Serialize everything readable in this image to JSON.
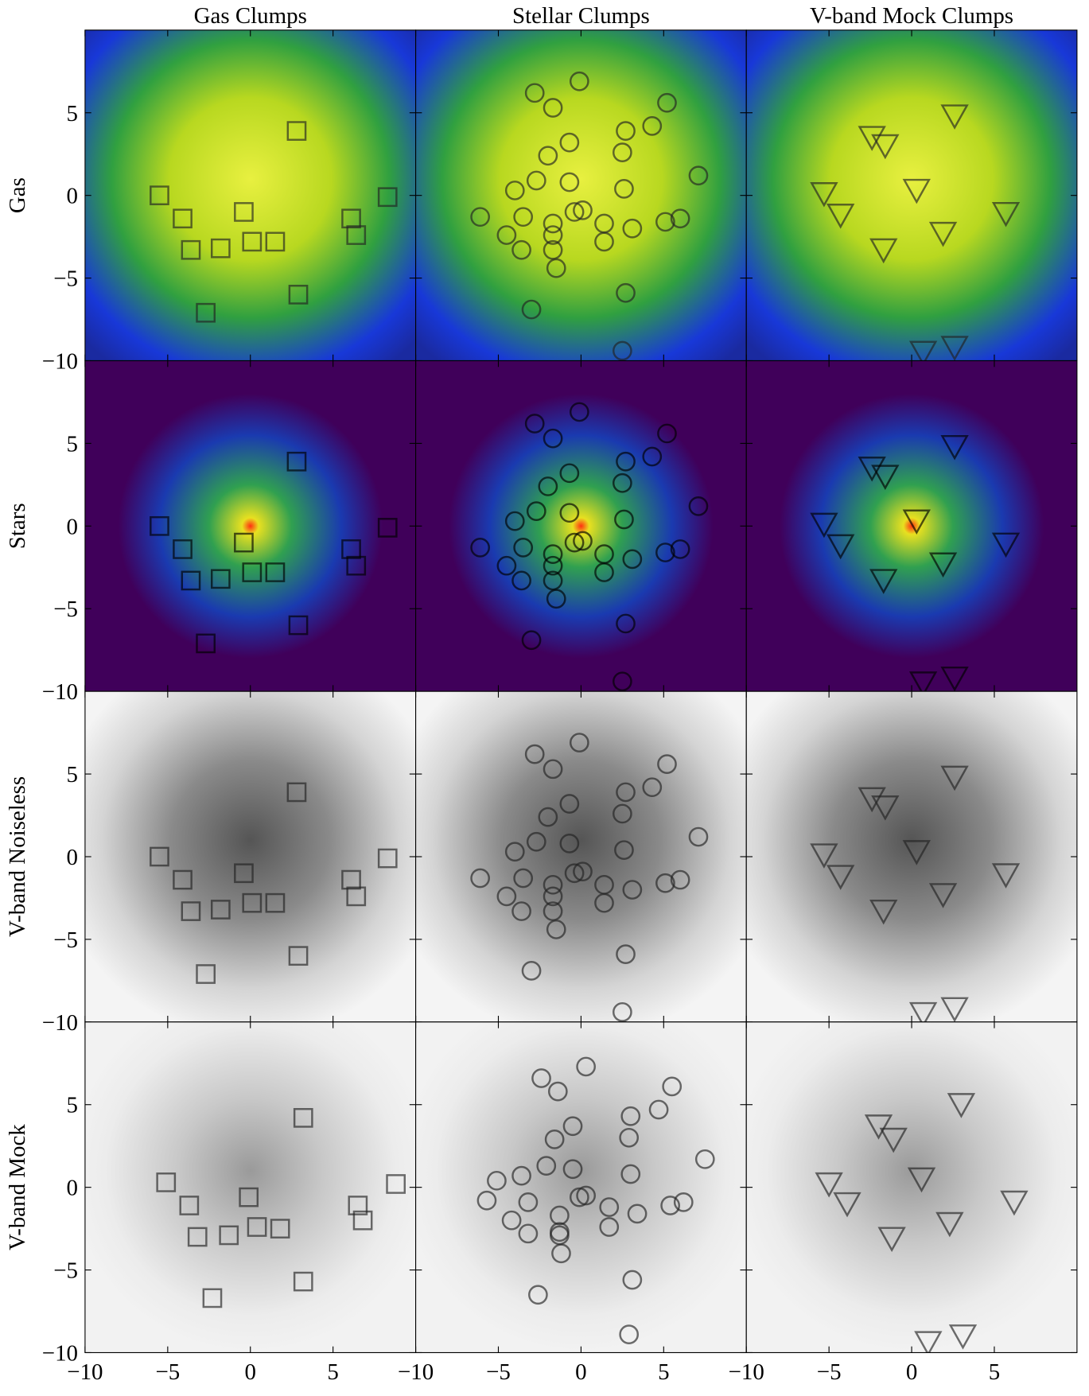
{
  "chart_data": {
    "type": "scatter",
    "row_labels": [
      "Gas",
      "Stars",
      "V-band Noiseless",
      "V-band Mock"
    ],
    "xlim": [
      -10,
      10
    ],
    "ylim": [
      -10,
      10
    ],
    "xticks": [
      {
        "value": -10,
        "label": "−10"
      },
      {
        "value": -5,
        "label": "−5"
      },
      0,
      5
    ],
    "yticks": [
      {
        "value": -10,
        "label": "−10"
      },
      {
        "value": -5,
        "label": "−5"
      },
      0,
      5
    ],
    "markers": [
      "square",
      "circle",
      "triangle"
    ],
    "series": [
      {
        "name": "Gas Clumps",
        "x": [
          2.8,
          -5.5,
          8.3,
          -4.1,
          -0.4,
          6.1,
          6.4,
          0.1,
          1.5,
          -1.8,
          -3.6,
          2.9,
          -2.7
        ],
        "y": [
          3.9,
          0.0,
          -0.1,
          -1.4,
          -1.0,
          -1.4,
          -2.4,
          -2.8,
          -2.8,
          -3.2,
          -3.3,
          -6.0,
          -7.1
        ]
      },
      {
        "name": "Stellar Clumps",
        "x": [
          -2.8,
          -0.1,
          -1.7,
          5.2,
          4.3,
          2.7,
          -0.7,
          -2.0,
          2.5,
          -2.7,
          -0.7,
          7.1,
          -4.0,
          2.6,
          -6.1,
          -3.5,
          -0.4,
          0.1,
          -1.7,
          1.4,
          5.1,
          6.0,
          -4.5,
          3.1,
          -1.7,
          1.4,
          -3.6,
          -1.7,
          -1.5,
          2.7,
          -3.0,
          2.5
        ],
        "y": [
          6.2,
          6.9,
          5.3,
          5.6,
          4.2,
          3.9,
          3.2,
          2.4,
          2.6,
          0.9,
          0.8,
          1.2,
          0.3,
          0.4,
          -1.3,
          -1.3,
          -1.0,
          -0.9,
          -1.7,
          -1.7,
          -1.6,
          -1.4,
          -2.4,
          -2.0,
          -2.4,
          -2.8,
          -3.3,
          -3.3,
          -4.4,
          -5.9,
          -6.9,
          -9.4
        ]
      },
      {
        "name": "V-band Mock Clumps",
        "x": [
          2.6,
          -2.4,
          -1.6,
          -5.3,
          0.3,
          -4.3,
          5.7,
          1.9,
          -1.7,
          0.7,
          2.6
        ],
        "y": [
          4.8,
          3.5,
          3.0,
          0.1,
          0.3,
          -1.2,
          -1.1,
          -2.3,
          -3.3,
          -9.5,
          -9.2
        ]
      }
    ],
    "mock_series": [
      {
        "x": [
          3.2,
          -5.1,
          8.8,
          -3.7,
          -0.1,
          6.5,
          6.8,
          0.4,
          1.8,
          -1.3,
          -3.2,
          3.2,
          -2.3
        ],
        "y": [
          4.2,
          0.3,
          0.2,
          -1.1,
          -0.6,
          -1.1,
          -2.0,
          -2.4,
          -2.5,
          -2.9,
          -3.0,
          -5.7,
          -6.7
        ]
      },
      {
        "x": [
          -2.4,
          0.3,
          -1.4,
          5.5,
          4.7,
          3.0,
          -0.5,
          -1.6,
          2.9,
          -2.1,
          -0.5,
          7.5,
          -3.6,
          3.0,
          -5.7,
          -5.1,
          -3.2,
          -0.1,
          0.3,
          -1.3,
          1.7,
          5.4,
          6.2,
          -4.2,
          3.4,
          -1.3,
          1.7,
          -3.2,
          -1.3,
          -1.2,
          3.1,
          -2.6,
          2.9
        ],
        "y": [
          6.6,
          7.3,
          5.8,
          6.1,
          4.7,
          4.3,
          3.7,
          2.9,
          3.0,
          1.3,
          1.1,
          1.7,
          0.7,
          0.8,
          -0.8,
          0.4,
          -0.9,
          -0.6,
          -0.5,
          -1.7,
          -1.2,
          -1.1,
          -0.9,
          -2.0,
          -1.6,
          -2.7,
          -2.4,
          -2.8,
          -2.9,
          -4.0,
          -5.6,
          -6.5,
          -8.9
        ]
      },
      {
        "x": [
          3.0,
          -2.0,
          -1.1,
          -5.0,
          0.6,
          -3.9,
          6.2,
          2.3,
          -1.2,
          1.0,
          3.1
        ],
        "y": [
          5.0,
          3.7,
          2.9,
          0.2,
          0.5,
          -1.0,
          -0.9,
          -2.2,
          -3.1,
          -9.4,
          -9.0
        ]
      }
    ]
  }
}
